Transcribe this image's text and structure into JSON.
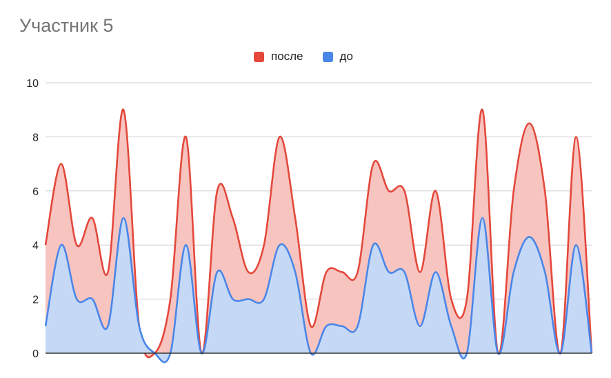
{
  "title": "Участник 5",
  "colors": {
    "after_line": "#e3483b",
    "after_fill": "#f7c4c0",
    "before_line": "#4a86e8",
    "before_fill": "#c5d9f7",
    "grid": "#cccccc",
    "axis": "#333333"
  },
  "chart_data": {
    "type": "area",
    "title": "Участник 5",
    "xlabel": "",
    "ylabel": "",
    "ylim": [
      0,
      10
    ],
    "yticks": [
      "0",
      "2",
      "4",
      "6",
      "8",
      "10"
    ],
    "grid": true,
    "legend_position": "top",
    "series": [
      {
        "name": "после",
        "color": "#e3483b",
        "values": [
          4,
          7,
          4,
          5,
          3,
          9,
          1,
          0,
          2,
          8,
          0,
          6,
          5,
          3,
          4,
          8,
          5,
          1,
          3,
          3,
          3,
          7,
          6,
          6,
          3,
          6,
          2,
          2,
          9,
          0,
          6,
          8.5,
          6,
          0,
          8,
          0
        ]
      },
      {
        "name": "до",
        "color": "#4a86e8",
        "values": [
          1,
          4,
          2,
          2,
          1,
          5,
          1,
          0,
          0,
          4,
          0,
          3,
          2,
          2,
          2,
          4,
          3,
          0,
          1,
          1,
          1,
          4,
          3,
          3,
          1,
          3,
          1,
          0,
          5,
          0,
          3,
          4.3,
          3,
          0,
          4,
          0
        ]
      }
    ]
  }
}
